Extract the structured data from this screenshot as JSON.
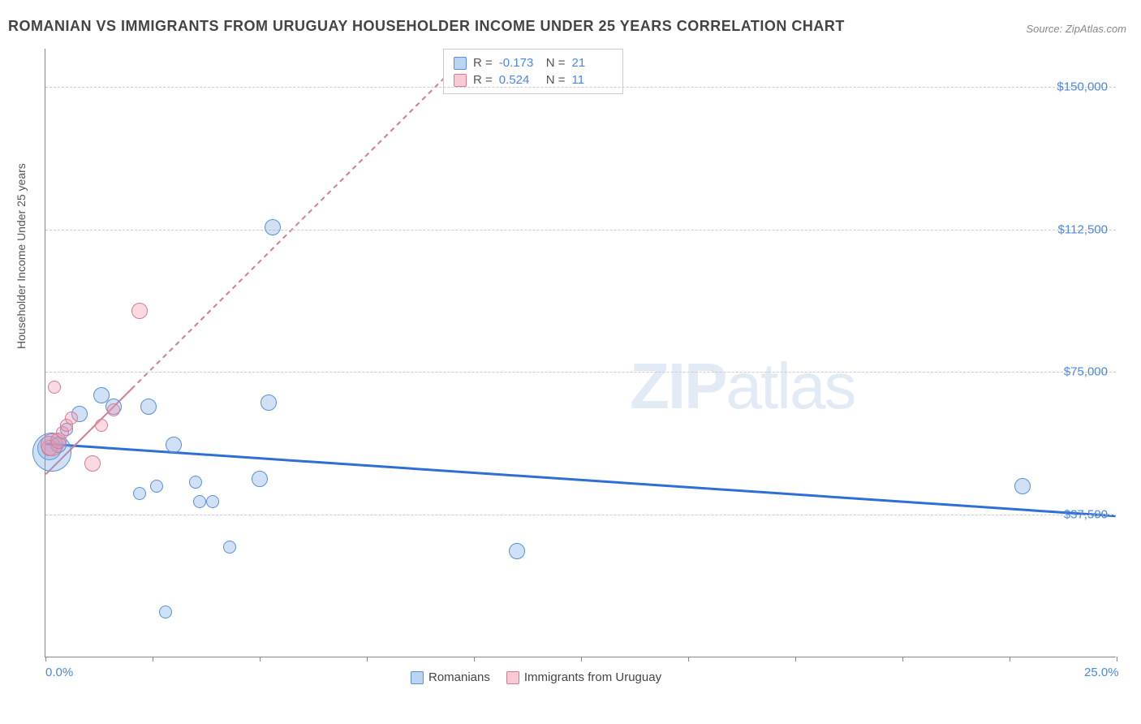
{
  "title": "ROMANIAN VS IMMIGRANTS FROM URUGUAY HOUSEHOLDER INCOME UNDER 25 YEARS CORRELATION CHART",
  "source": "Source: ZipAtlas.com",
  "watermark_bold": "ZIP",
  "watermark_rest": "atlas",
  "chart": {
    "type": "scatter",
    "ylabel": "Householder Income Under 25 years",
    "xlim": [
      0,
      25
    ],
    "ylim": [
      0,
      160000
    ],
    "x_tick_positions": [
      0,
      2.5,
      5,
      7.5,
      10,
      12.5,
      15,
      17.5,
      20,
      22.5,
      25
    ],
    "x_tick_labels_shown": {
      "0": "0.0%",
      "25": "25.0%"
    },
    "y_gridlines": [
      37500,
      75000,
      112500,
      150000
    ],
    "y_tick_labels": [
      "$37,500",
      "$75,000",
      "$112,500",
      "$150,000"
    ],
    "background_color": "#ffffff",
    "grid_color": "#cccccc",
    "axis_color": "#888888",
    "tick_label_color": "#4a86e8",
    "label_fontsize": 14,
    "title_fontsize": 18,
    "series": [
      {
        "name": "Romanians",
        "color_fill": "rgba(120,170,230,0.35)",
        "color_stroke": "#5b8fd6",
        "class": "blue",
        "R": "-0.173",
        "N": "21",
        "trend": {
          "x1": 0,
          "y1": 56000,
          "x2": 25,
          "y2": 37000,
          "stroke": "#2d6fd6",
          "stroke_width": 3,
          "dash": ""
        },
        "points": [
          {
            "x": 0.1,
            "y": 55000,
            "r": 15
          },
          {
            "x": 0.15,
            "y": 54000,
            "r": 24
          },
          {
            "x": 0.3,
            "y": 56000,
            "r": 10
          },
          {
            "x": 0.8,
            "y": 64000,
            "r": 10
          },
          {
            "x": 1.3,
            "y": 69000,
            "r": 10
          },
          {
            "x": 1.6,
            "y": 66000,
            "r": 10
          },
          {
            "x": 2.4,
            "y": 66000,
            "r": 10
          },
          {
            "x": 3.0,
            "y": 56000,
            "r": 10
          },
          {
            "x": 2.2,
            "y": 43000,
            "r": 8
          },
          {
            "x": 2.6,
            "y": 45000,
            "r": 8
          },
          {
            "x": 3.5,
            "y": 46000,
            "r": 8
          },
          {
            "x": 3.6,
            "y": 41000,
            "r": 8
          },
          {
            "x": 3.9,
            "y": 41000,
            "r": 8
          },
          {
            "x": 4.3,
            "y": 29000,
            "r": 8
          },
          {
            "x": 2.8,
            "y": 12000,
            "r": 8
          },
          {
            "x": 5.0,
            "y": 47000,
            "r": 10
          },
          {
            "x": 5.2,
            "y": 67000,
            "r": 10
          },
          {
            "x": 5.3,
            "y": 113000,
            "r": 10
          },
          {
            "x": 11.0,
            "y": 28000,
            "r": 10
          },
          {
            "x": 22.8,
            "y": 45000,
            "r": 10
          },
          {
            "x": 0.5,
            "y": 60000,
            "r": 8
          }
        ]
      },
      {
        "name": "Immigrants from Uruguay",
        "color_fill": "rgba(240,150,170,0.35)",
        "color_stroke": "#d67b95",
        "class": "pink",
        "R": "0.524",
        "N": "11",
        "trend": {
          "x1": 0,
          "y1": 48000,
          "x2": 10,
          "y2": 160000,
          "stroke": "#d67b95",
          "stroke_width": 2,
          "dash": "6,5",
          "solid_until_x": 2.0
        },
        "points": [
          {
            "x": 0.1,
            "y": 55000,
            "r": 10
          },
          {
            "x": 0.15,
            "y": 56000,
            "r": 14
          },
          {
            "x": 0.3,
            "y": 57000,
            "r": 10
          },
          {
            "x": 0.4,
            "y": 59000,
            "r": 8
          },
          {
            "x": 0.5,
            "y": 61000,
            "r": 8
          },
          {
            "x": 0.6,
            "y": 63000,
            "r": 8
          },
          {
            "x": 0.2,
            "y": 71000,
            "r": 8
          },
          {
            "x": 1.1,
            "y": 51000,
            "r": 10
          },
          {
            "x": 1.3,
            "y": 61000,
            "r": 8
          },
          {
            "x": 1.6,
            "y": 65000,
            "r": 8
          },
          {
            "x": 2.2,
            "y": 91000,
            "r": 10
          }
        ]
      }
    ],
    "legend_top": {
      "rows": [
        {
          "swatch": "blue",
          "r_label": "R =",
          "r_value": "-0.173",
          "n_label": "N =",
          "n_value": "21"
        },
        {
          "swatch": "pink",
          "r_label": "R =",
          "r_value": "0.524",
          "n_label": "N =",
          "n_value": "11"
        }
      ]
    },
    "legend_bottom": [
      {
        "swatch": "blue",
        "label": "Romanians"
      },
      {
        "swatch": "pink",
        "label": "Immigrants from Uruguay"
      }
    ]
  }
}
